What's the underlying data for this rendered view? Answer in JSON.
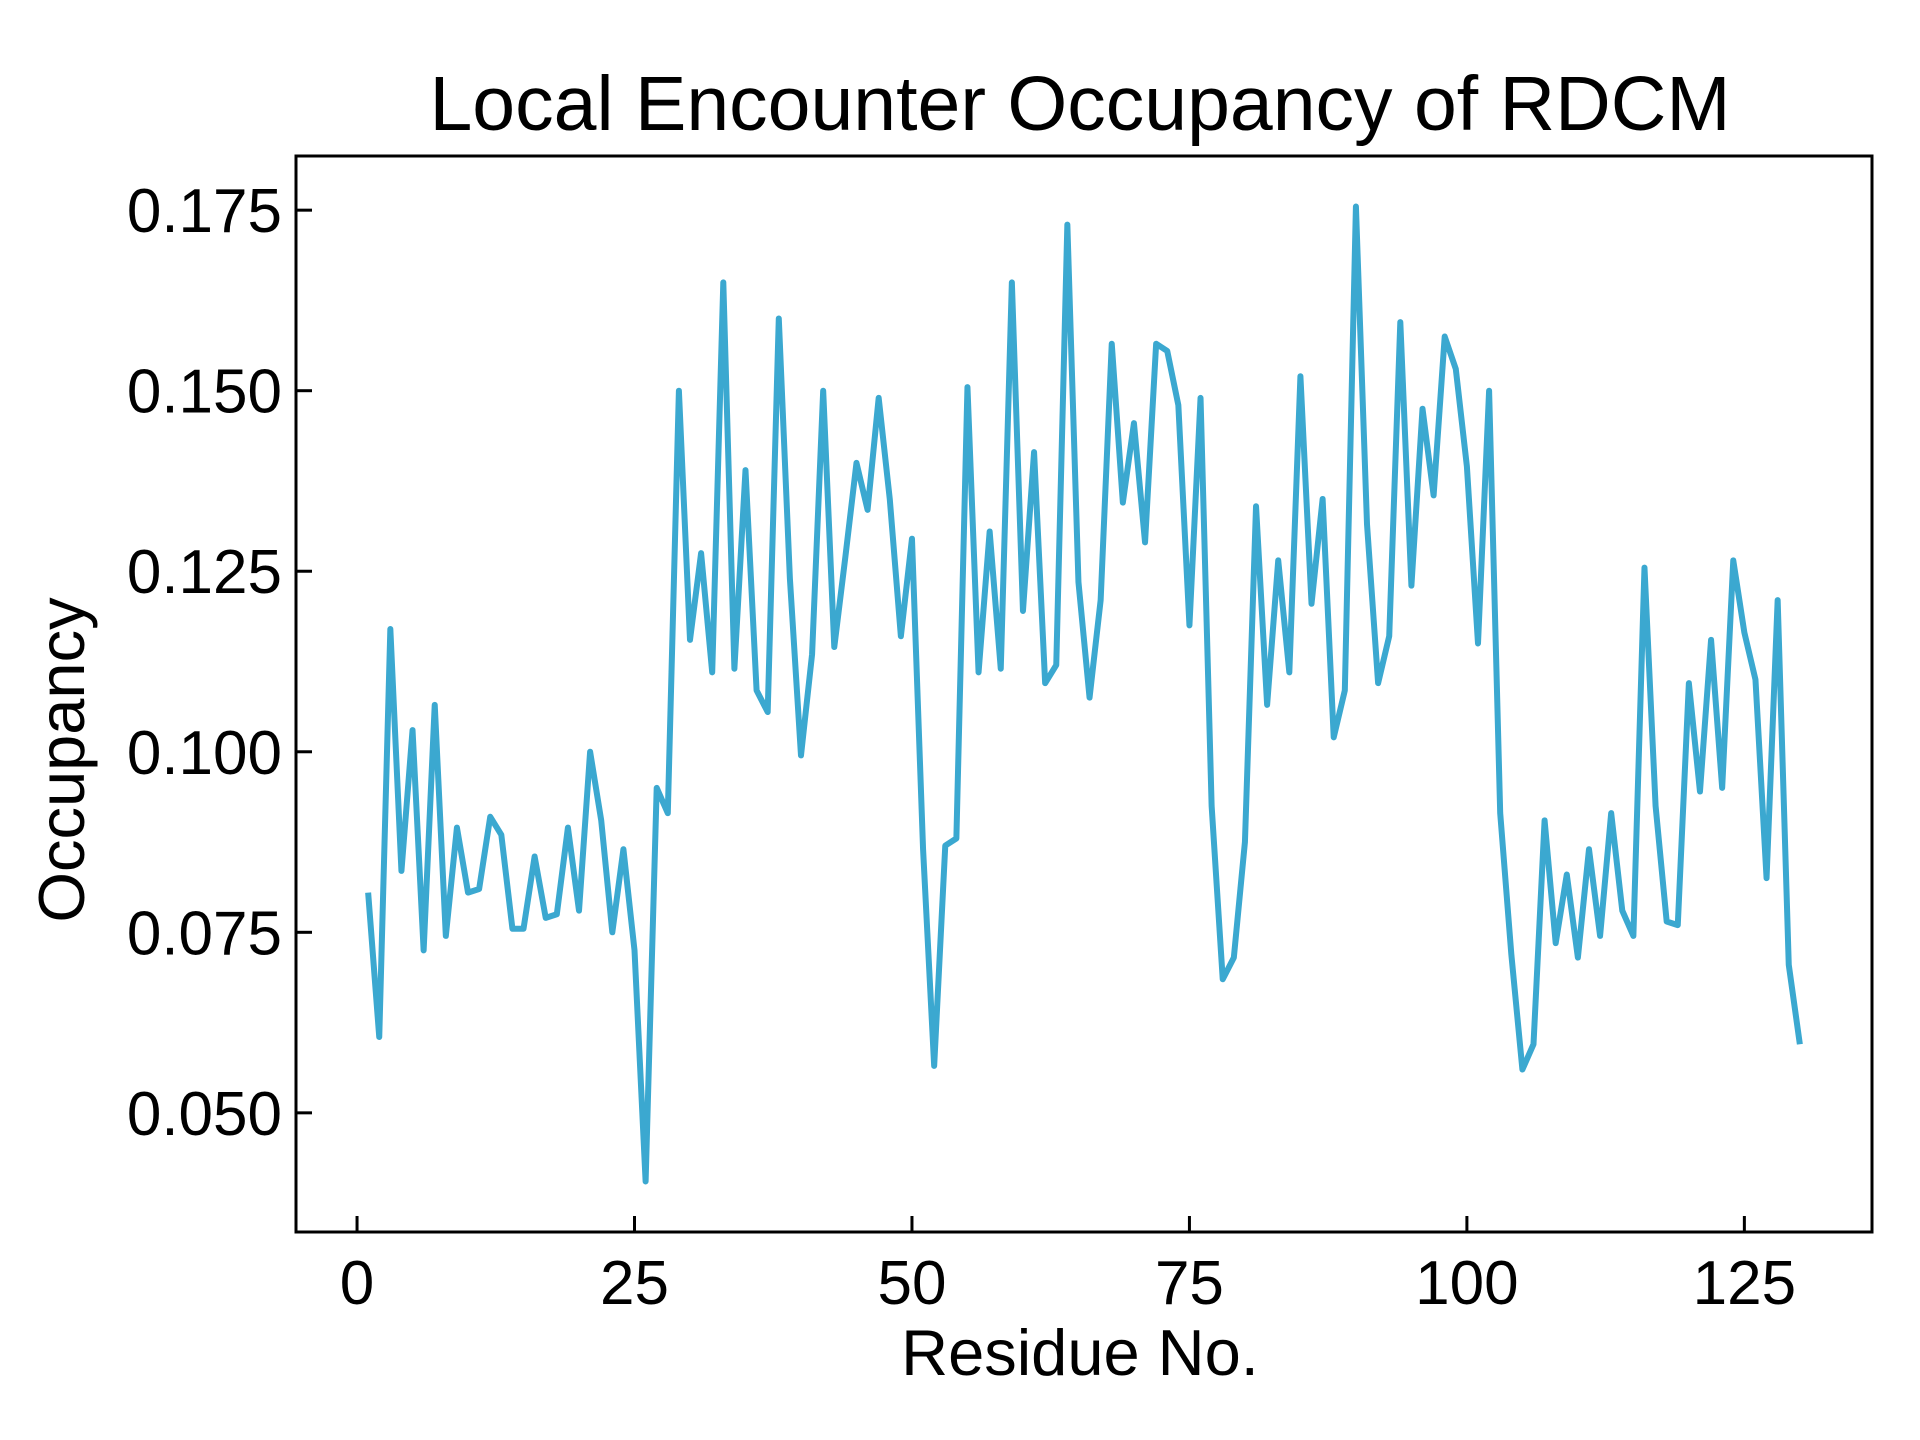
{
  "chart_data": {
    "type": "line",
    "title": "Local Encounter Occupancy of RDCM",
    "xlabel": "Residue No.",
    "ylabel": "Occupancy",
    "xlim": [
      -5.5,
      136.5
    ],
    "ylim": [
      0.0335,
      0.1825
    ],
    "xticks": [
      0,
      25,
      50,
      75,
      100,
      125
    ],
    "xtick_labels": [
      "0",
      "25",
      "50",
      "75",
      "100",
      "125"
    ],
    "yticks": [
      0.05,
      0.075,
      0.1,
      0.125,
      0.15,
      0.175
    ],
    "ytick_labels": [
      "0.050",
      "0.075",
      "0.100",
      "0.125",
      "0.150",
      "0.175"
    ],
    "grid": false,
    "legend": "none",
    "line_color": "#3ba8d0",
    "series": [
      {
        "x": [
          1,
          2,
          3,
          4,
          5,
          6,
          7,
          8,
          9,
          10,
          11,
          12,
          13,
          14,
          15,
          16,
          17,
          18,
          19,
          20,
          21,
          22,
          23,
          24,
          25,
          26,
          27,
          28,
          29,
          30,
          31,
          32,
          33,
          34,
          35,
          36,
          37,
          38,
          39,
          40,
          41,
          42,
          43,
          44,
          45,
          46,
          47,
          48,
          49,
          50,
          51,
          52,
          53,
          54,
          55,
          56,
          57,
          58,
          59,
          60,
          61,
          62,
          63,
          64,
          65,
          66,
          67,
          68,
          69,
          70,
          71,
          72,
          73,
          74,
          75,
          76,
          77,
          78,
          79,
          80,
          81,
          82,
          83,
          84,
          85,
          86,
          87,
          88,
          89,
          90,
          91,
          92,
          93,
          94,
          95,
          96,
          97,
          98,
          99,
          100,
          101,
          102,
          103,
          104,
          105,
          106,
          107,
          108,
          109,
          110,
          111,
          112,
          113,
          114,
          115,
          116,
          117,
          118,
          119,
          120,
          121,
          122,
          123,
          124,
          125,
          126,
          127,
          128,
          129,
          130
        ],
        "values": [
          0.0805,
          0.0605,
          0.117,
          0.0835,
          0.103,
          0.0725,
          0.1065,
          0.0745,
          0.0895,
          0.0805,
          0.081,
          0.091,
          0.0885,
          0.0755,
          0.0755,
          0.0855,
          0.077,
          0.0775,
          0.0895,
          0.078,
          0.1,
          0.0905,
          0.075,
          0.0865,
          0.0725,
          0.0405,
          0.095,
          0.0915,
          0.15,
          0.1155,
          0.1275,
          0.111,
          0.165,
          0.1115,
          0.139,
          0.1085,
          0.1055,
          0.16,
          0.124,
          0.0995,
          0.1135,
          0.15,
          0.1145,
          0.127,
          0.14,
          0.1335,
          0.149,
          0.135,
          0.116,
          0.1295,
          0.0865,
          0.0565,
          0.087,
          0.088,
          0.1505,
          0.111,
          0.1305,
          0.1115,
          0.165,
          0.1195,
          0.1415,
          0.1095,
          0.112,
          0.173,
          0.1235,
          0.1075,
          0.121,
          0.1565,
          0.1345,
          0.1455,
          0.129,
          0.1565,
          0.1555,
          0.148,
          0.1175,
          0.149,
          0.0925,
          0.0685,
          0.0715,
          0.0875,
          0.134,
          0.1065,
          0.1265,
          0.111,
          0.152,
          0.1205,
          0.135,
          0.102,
          0.1085,
          0.1755,
          0.1315,
          0.1095,
          0.116,
          0.1595,
          0.123,
          0.1475,
          0.1355,
          0.1575,
          0.153,
          0.1395,
          0.115,
          0.15,
          0.0915,
          0.072,
          0.056,
          0.0595,
          0.0905,
          0.0735,
          0.083,
          0.0715,
          0.0865,
          0.0745,
          0.0915,
          0.078,
          0.0745,
          0.1255,
          0.0925,
          0.0765,
          0.076,
          0.1095,
          0.0945,
          0.1155,
          0.095,
          0.1265,
          0.1165,
          0.11,
          0.0825,
          0.121,
          0.0705,
          0.0595
        ]
      }
    ]
  }
}
